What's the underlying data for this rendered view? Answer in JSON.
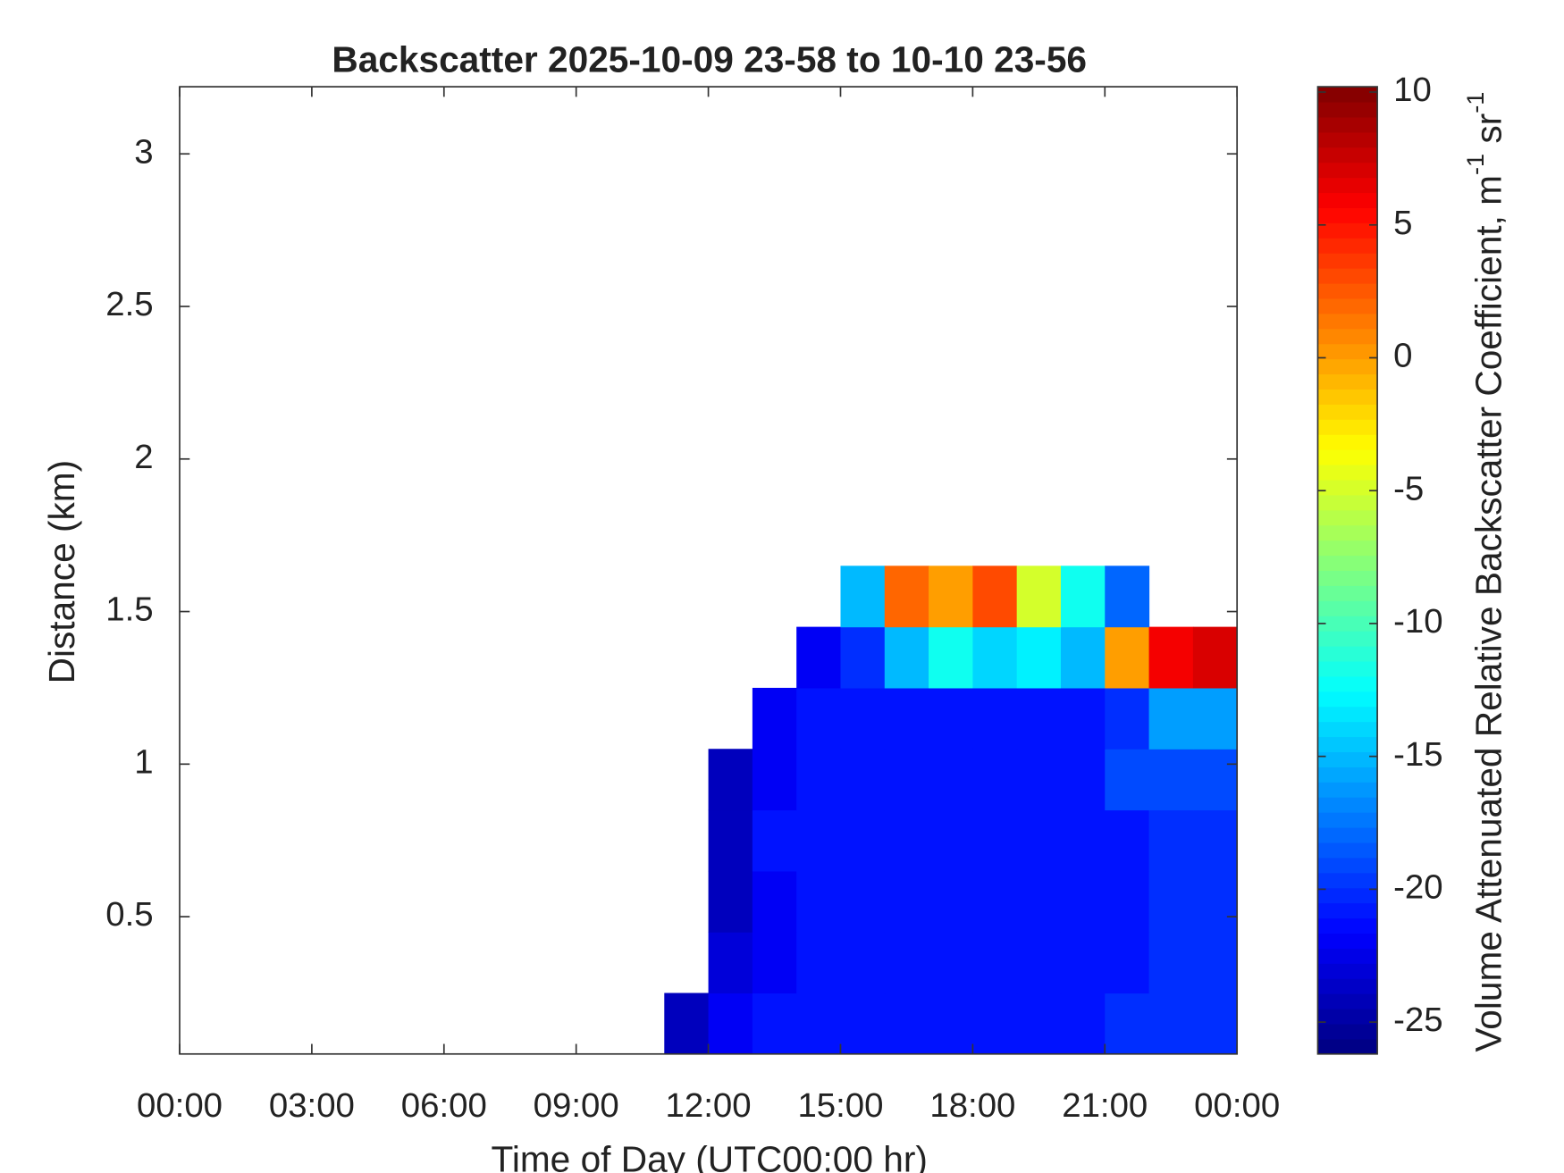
{
  "chart_data": {
    "type": "heatmap",
    "title": "Backscatter 2025-10-09 23-58 to 10-10 23-56",
    "x_label": "Time of Day (UTC00:00 hr)",
    "y_label": "Distance (km)",
    "colorbar_label_parts": [
      "Volume Attenuated Relative Backscatter Coefficient, m",
      "-1",
      " sr",
      "-1"
    ],
    "colormap": "jet",
    "x_edges": [
      0,
      1,
      2,
      3,
      4,
      5,
      6,
      7,
      8,
      9,
      10,
      11,
      12,
      13,
      14,
      15,
      16,
      17,
      18,
      19,
      20,
      21,
      22,
      23,
      24
    ],
    "y_edges": [
      0.05,
      0.25,
      0.45,
      0.65,
      0.85,
      1.05,
      1.25,
      1.45,
      1.65,
      1.85,
      2.05,
      2.25,
      2.45,
      2.65,
      2.85,
      3.05,
      3.25
    ],
    "z": [
      [
        null,
        null,
        null,
        null,
        null,
        null,
        null,
        null,
        null,
        null,
        null,
        -24,
        -22,
        -21,
        -21,
        -21,
        -21,
        -21,
        -21,
        -21,
        -21,
        -20,
        -20,
        -20
      ],
      [
        null,
        null,
        null,
        null,
        null,
        null,
        null,
        null,
        null,
        null,
        null,
        null,
        -23,
        -22,
        -21,
        -21,
        -21,
        -21,
        -21,
        -21,
        -21,
        -21,
        -20,
        -20
      ],
      [
        null,
        null,
        null,
        null,
        null,
        null,
        null,
        null,
        null,
        null,
        null,
        null,
        -24,
        -22,
        -21,
        -21,
        -21,
        -21,
        -21,
        -21,
        -21,
        -21,
        -20,
        -20
      ],
      [
        null,
        null,
        null,
        null,
        null,
        null,
        null,
        null,
        null,
        null,
        null,
        null,
        -24,
        -21,
        -21,
        -21,
        -21,
        -21,
        -21,
        -21,
        -21,
        -21,
        -20,
        -20
      ],
      [
        null,
        null,
        null,
        null,
        null,
        null,
        null,
        null,
        null,
        null,
        null,
        null,
        -24,
        -22,
        -21,
        -21,
        -21,
        -21,
        -21,
        -21,
        -21,
        -19,
        -19,
        -19
      ],
      [
        null,
        null,
        null,
        null,
        null,
        null,
        null,
        null,
        null,
        null,
        null,
        null,
        null,
        -22,
        -21,
        -21,
        -21,
        -21,
        -21,
        -21,
        -21,
        -20,
        -16,
        -16
      ],
      [
        null,
        null,
        null,
        null,
        null,
        null,
        null,
        null,
        null,
        null,
        null,
        null,
        null,
        null,
        -22,
        -20,
        -15,
        -12,
        -14,
        -13,
        -15,
        0,
        6,
        7
      ],
      [
        null,
        null,
        null,
        null,
        null,
        null,
        null,
        null,
        null,
        null,
        null,
        null,
        null,
        null,
        null,
        -15,
        2,
        0,
        3,
        -5,
        -12,
        -18,
        null,
        null
      ],
      [
        null,
        null,
        null,
        null,
        null,
        null,
        null,
        null,
        null,
        null,
        null,
        null,
        null,
        null,
        null,
        null,
        null,
        null,
        null,
        null,
        null,
        null,
        null,
        null
      ],
      [
        null,
        null,
        null,
        null,
        null,
        null,
        null,
        null,
        null,
        null,
        null,
        null,
        null,
        null,
        null,
        null,
        null,
        null,
        null,
        null,
        null,
        null,
        null,
        null
      ],
      [
        null,
        null,
        null,
        null,
        null,
        null,
        null,
        null,
        null,
        null,
        null,
        null,
        null,
        null,
        null,
        null,
        null,
        null,
        null,
        null,
        null,
        null,
        null,
        null
      ],
      [
        null,
        null,
        null,
        null,
        null,
        null,
        null,
        null,
        null,
        null,
        null,
        null,
        null,
        null,
        null,
        null,
        null,
        null,
        null,
        null,
        null,
        null,
        null,
        null
      ],
      [
        null,
        null,
        null,
        null,
        null,
        null,
        null,
        null,
        null,
        null,
        null,
        null,
        null,
        null,
        null,
        null,
        null,
        null,
        null,
        null,
        null,
        null,
        null,
        null
      ],
      [
        null,
        null,
        null,
        null,
        null,
        null,
        null,
        null,
        null,
        null,
        null,
        null,
        null,
        null,
        null,
        null,
        null,
        null,
        null,
        null,
        null,
        null,
        null,
        null
      ],
      [
        null,
        null,
        null,
        null,
        null,
        null,
        null,
        null,
        null,
        null,
        null,
        null,
        null,
        null,
        null,
        null,
        null,
        null,
        null,
        null,
        null,
        null,
        null,
        null
      ],
      [
        null,
        null,
        null,
        null,
        null,
        null,
        null,
        null,
        null,
        null,
        null,
        null,
        null,
        null,
        null,
        null,
        null,
        null,
        null,
        null,
        null,
        null,
        null,
        null
      ]
    ],
    "xlim": [
      0,
      24
    ],
    "xticks": [
      {
        "value": 0,
        "label": "00:00"
      },
      {
        "value": 3,
        "label": "03:00"
      },
      {
        "value": 6,
        "label": "06:00"
      },
      {
        "value": 9,
        "label": "09:00"
      },
      {
        "value": 12,
        "label": "12:00"
      },
      {
        "value": 15,
        "label": "15:00"
      },
      {
        "value": 18,
        "label": "18:00"
      },
      {
        "value": 21,
        "label": "21:00"
      },
      {
        "value": 24,
        "label": "00:00"
      }
    ],
    "ylim": [
      0.05,
      3.22
    ],
    "yticks": [
      0.5,
      1,
      1.5,
      2,
      2.5,
      3
    ],
    "clim": [
      -26.2,
      10.2
    ],
    "cticks": [
      -25,
      -20,
      -15,
      -10,
      -5,
      0,
      5,
      10
    ]
  }
}
